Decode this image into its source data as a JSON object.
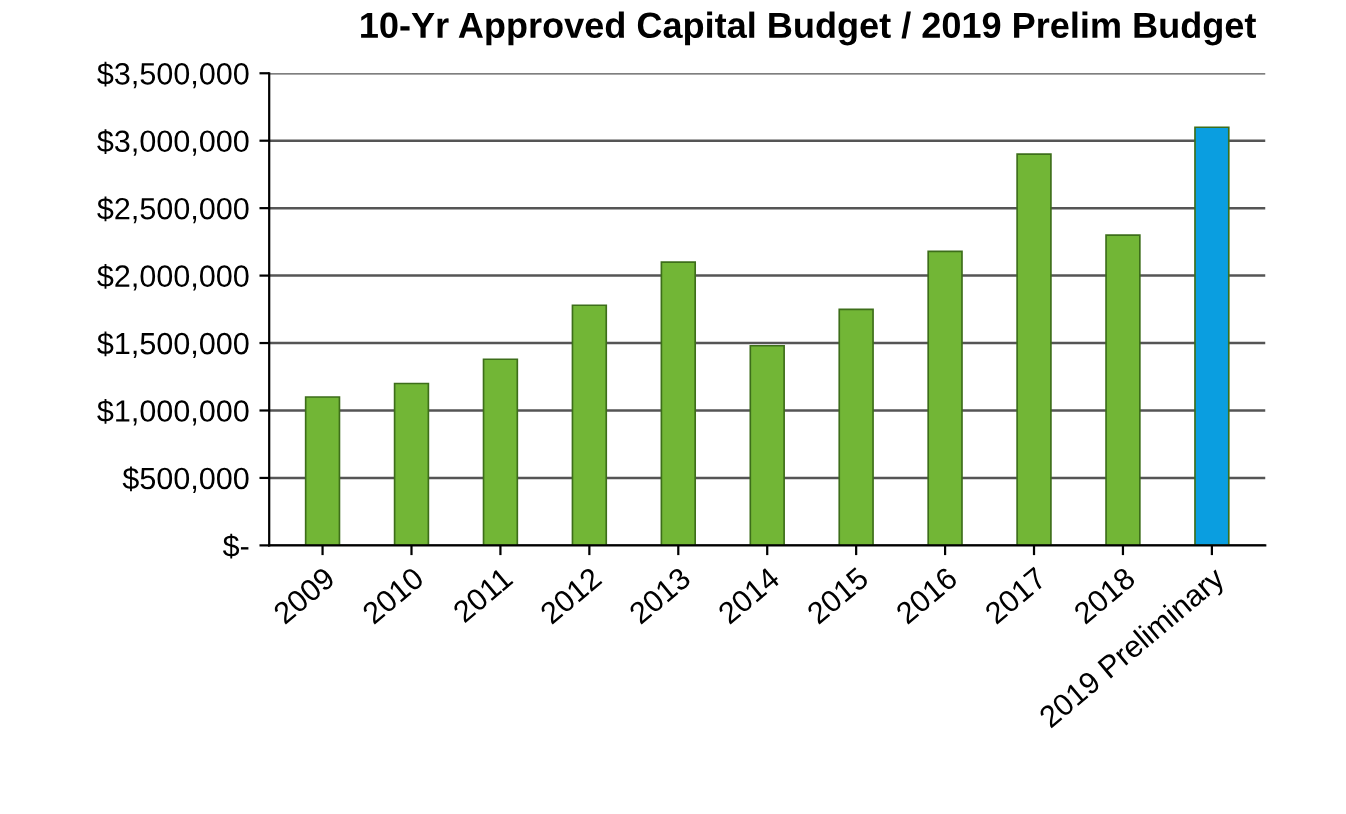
{
  "chart_data": {
    "type": "bar",
    "title": "10-Yr Approved Capital Budget / 2019 Prelim Budget",
    "categories": [
      "2009",
      "2010",
      "2011",
      "2012",
      "2013",
      "2014",
      "2015",
      "2016",
      "2017",
      "2018",
      "2019 Preliminary"
    ],
    "values": [
      1100000,
      1200000,
      1380000,
      1780000,
      2100000,
      1480000,
      1750000,
      2180000,
      2900000,
      2300000,
      3100000
    ],
    "colors": [
      "#72b636",
      "#72b636",
      "#72b636",
      "#72b636",
      "#72b636",
      "#72b636",
      "#72b636",
      "#72b636",
      "#72b636",
      "#72b636",
      "#0a9ee0"
    ],
    "ylim": [
      0,
      3500000
    ],
    "yticks": [
      {
        "value": 0,
        "label": "$-"
      },
      {
        "value": 500000,
        "label": "$500,000"
      },
      {
        "value": 1000000,
        "label": "$1,000,000"
      },
      {
        "value": 1500000,
        "label": "$1,500,000"
      },
      {
        "value": 2000000,
        "label": "$2,000,000"
      },
      {
        "value": 2500000,
        "label": "$2,500,000"
      },
      {
        "value": 3000000,
        "label": "$3,000,000"
      },
      {
        "value": 3500000,
        "label": "$3,500,000"
      }
    ],
    "grid": "y"
  }
}
